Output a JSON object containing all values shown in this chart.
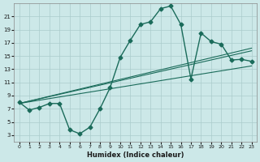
{
  "xlabel": "Humidex (Indice chaleur)",
  "ylabel": "",
  "bg_color": "#cce8e8",
  "grid_color": "#aacccc",
  "line_color": "#1a6b5a",
  "xlim": [
    -0.5,
    23.5
  ],
  "ylim": [
    2,
    23
  ],
  "xticks": [
    0,
    1,
    2,
    3,
    4,
    5,
    6,
    7,
    8,
    9,
    10,
    11,
    12,
    13,
    14,
    15,
    16,
    17,
    18,
    19,
    20,
    21,
    22,
    23
  ],
  "yticks": [
    3,
    5,
    7,
    9,
    11,
    13,
    15,
    17,
    19,
    21
  ],
  "main_x": [
    0,
    1,
    2,
    3,
    4,
    5,
    6,
    7,
    8,
    9,
    10,
    11,
    12,
    13,
    14,
    15,
    16,
    17,
    18,
    19,
    20,
    21,
    22,
    23
  ],
  "main_y": [
    8,
    6.8,
    7.2,
    7.8,
    7.8,
    3.8,
    3.2,
    4.2,
    7.0,
    10.2,
    14.8,
    17.4,
    19.8,
    20.2,
    22.2,
    22.6,
    19.8,
    11.5,
    18.5,
    17.2,
    16.8,
    14.4,
    14.5,
    14.2
  ],
  "reg_line1_x": [
    0,
    23
  ],
  "reg_line1_y": [
    7.8,
    13.5
  ],
  "reg_line2_x": [
    0,
    23
  ],
  "reg_line2_y": [
    7.8,
    15.8
  ],
  "reg_line3_x": [
    0,
    23
  ],
  "reg_line3_y": [
    7.8,
    16.2
  ]
}
